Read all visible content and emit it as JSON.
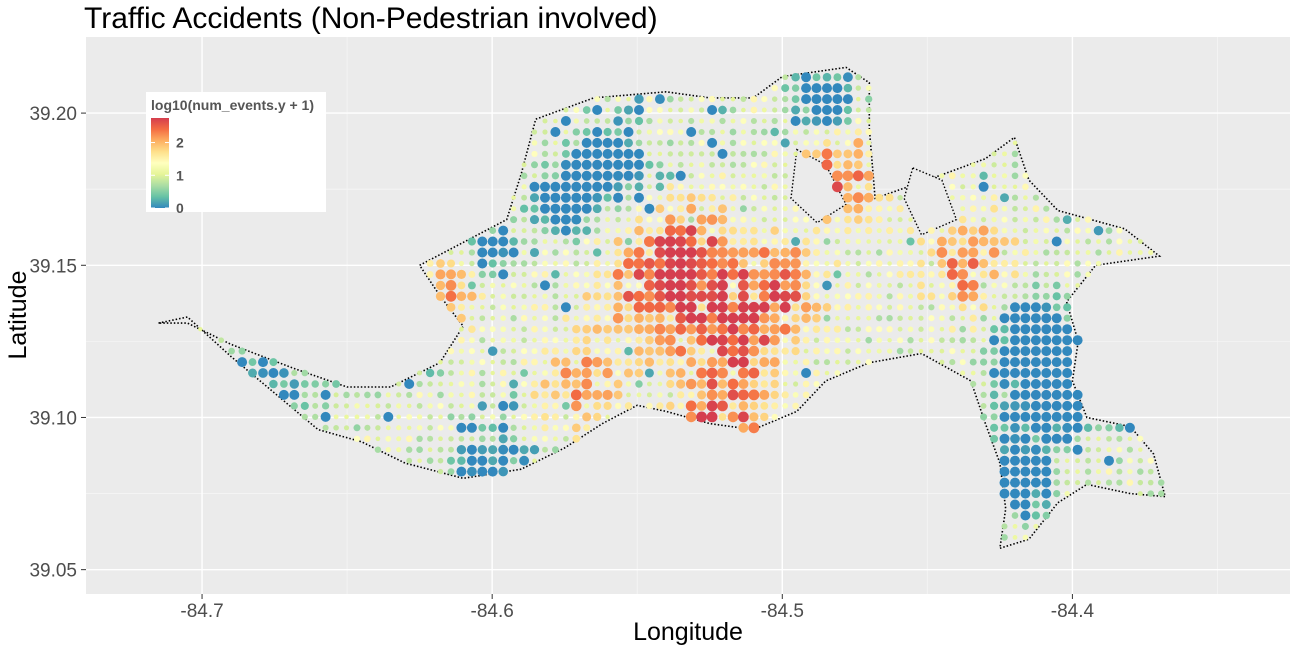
{
  "chart_data": {
    "type": "heatmap",
    "title": "Traffic Accidents (Non-Pedestrian involved)",
    "xlabel": "Longitude",
    "ylabel": "Latitude",
    "xlim": [
      -84.74,
      -84.325
    ],
    "ylim": [
      39.042,
      39.225
    ],
    "x_ticks": [
      -84.7,
      -84.6,
      -84.5,
      -84.4
    ],
    "x_tick_labels": [
      "-84.7",
      "-84.6",
      "-84.5",
      "-84.4"
    ],
    "y_ticks": [
      39.05,
      39.1,
      39.15,
      39.2
    ],
    "y_tick_labels": [
      "39.05",
      "39.10",
      "39.15",
      "39.20"
    ],
    "grid": true,
    "legend": {
      "title": "log10(num_events.y + 1)",
      "placement": "top-left inside",
      "ticks": [
        0,
        1,
        2
      ],
      "tick_labels": [
        "0",
        "1",
        "2"
      ],
      "range": [
        0,
        2.75
      ],
      "colors": [
        "#3288bd",
        "#66c2a5",
        "#abdda4",
        "#e6f598",
        "#ffffbf",
        "#fee08b",
        "#fdae61",
        "#f46d43",
        "#d53e4f"
      ]
    },
    "grid_spacing_deg": 0.0036,
    "region_polygon": [
      [
        -84.715,
        39.131
      ],
      [
        -84.705,
        39.133
      ],
      [
        -84.69,
        39.12
      ],
      [
        -84.675,
        39.108
      ],
      [
        -84.66,
        39.096
      ],
      [
        -84.645,
        39.092
      ],
      [
        -84.63,
        39.085
      ],
      [
        -84.61,
        39.08
      ],
      [
        -84.59,
        39.083
      ],
      [
        -84.575,
        39.09
      ],
      [
        -84.562,
        39.098
      ],
      [
        -84.55,
        39.104
      ],
      [
        -84.54,
        39.102
      ],
      [
        -84.525,
        39.098
      ],
      [
        -84.51,
        39.096
      ],
      [
        -84.495,
        39.102
      ],
      [
        -84.485,
        39.112
      ],
      [
        -84.47,
        39.118
      ],
      [
        -84.452,
        39.121
      ],
      [
        -84.435,
        39.112
      ],
      [
        -84.43,
        39.098
      ],
      [
        -84.425,
        39.085
      ],
      [
        -84.423,
        39.07
      ],
      [
        -84.425,
        39.057
      ],
      [
        -84.415,
        39.06
      ],
      [
        -84.405,
        39.072
      ],
      [
        -84.395,
        39.078
      ],
      [
        -84.38,
        39.075
      ],
      [
        -84.368,
        39.074
      ],
      [
        -84.372,
        39.088
      ],
      [
        -84.38,
        39.097
      ],
      [
        -84.395,
        39.1
      ],
      [
        -84.4,
        39.112
      ],
      [
        -84.398,
        39.125
      ],
      [
        -84.402,
        39.138
      ],
      [
        -84.392,
        39.15
      ],
      [
        -84.37,
        39.153
      ],
      [
        -84.382,
        39.162
      ],
      [
        -84.405,
        39.168
      ],
      [
        -84.415,
        39.178
      ],
      [
        -84.42,
        39.192
      ],
      [
        -84.43,
        39.185
      ],
      [
        -84.45,
        39.178
      ],
      [
        -84.468,
        39.172
      ],
      [
        -84.47,
        39.195
      ],
      [
        -84.47,
        39.21
      ],
      [
        -84.478,
        39.215
      ],
      [
        -84.5,
        39.212
      ],
      [
        -84.51,
        39.205
      ],
      [
        -84.525,
        39.205
      ],
      [
        -84.54,
        39.207
      ],
      [
        -84.565,
        39.205
      ],
      [
        -84.585,
        39.198
      ],
      [
        -84.59,
        39.18
      ],
      [
        -84.595,
        39.165
      ],
      [
        -84.605,
        39.16
      ],
      [
        -84.625,
        39.15
      ],
      [
        -84.618,
        39.14
      ],
      [
        -84.61,
        39.13
      ],
      [
        -84.618,
        39.118
      ],
      [
        -84.635,
        39.11
      ],
      [
        -84.65,
        39.11
      ],
      [
        -84.668,
        39.116
      ],
      [
        -84.69,
        39.124
      ],
      [
        -84.705,
        39.131
      ]
    ],
    "excluded_regions": [
      [
        [
          -84.495,
          39.188
        ],
        [
          -84.485,
          39.183
        ],
        [
          -84.478,
          39.17
        ],
        [
          -84.488,
          39.164
        ],
        [
          -84.497,
          39.172
        ]
      ],
      [
        [
          -84.455,
          39.182
        ],
        [
          -84.445,
          39.178
        ],
        [
          -84.44,
          39.165
        ],
        [
          -84.452,
          39.16
        ],
        [
          -84.458,
          39.172
        ]
      ]
    ],
    "hotspots": [
      {
        "lon": -84.522,
        "lat": 39.098,
        "weight": 2.8,
        "spread": 0.016
      },
      {
        "lon": -84.515,
        "lat": 39.128,
        "weight": 2.5,
        "spread": 0.018
      },
      {
        "lon": -84.545,
        "lat": 39.14,
        "weight": 2.4,
        "spread": 0.02
      },
      {
        "lon": -84.53,
        "lat": 39.155,
        "weight": 2.3,
        "spread": 0.015
      },
      {
        "lon": -84.48,
        "lat": 39.18,
        "weight": 2.4,
        "spread": 0.014
      },
      {
        "lon": -84.618,
        "lat": 39.14,
        "weight": 2.2,
        "spread": 0.012
      },
      {
        "lon": -84.435,
        "lat": 39.15,
        "weight": 2.2,
        "spread": 0.016
      },
      {
        "lon": -84.57,
        "lat": 39.11,
        "weight": 2.0,
        "spread": 0.014
      },
      {
        "lon": -84.5,
        "lat": 39.145,
        "weight": 2.0,
        "spread": 0.015
      }
    ],
    "coldspots": [
      {
        "lon": -84.405,
        "lat": 39.11,
        "depth": 2.4,
        "spread": 0.016
      },
      {
        "lon": -84.42,
        "lat": 39.08,
        "depth": 2.0,
        "spread": 0.012
      },
      {
        "lon": -84.575,
        "lat": 39.17,
        "depth": 1.9,
        "spread": 0.01
      },
      {
        "lon": -84.56,
        "lat": 39.185,
        "depth": 1.9,
        "spread": 0.012
      },
      {
        "lon": -84.485,
        "lat": 39.205,
        "depth": 1.8,
        "spread": 0.01
      },
      {
        "lon": -84.6,
        "lat": 39.155,
        "depth": 1.6,
        "spread": 0.008
      },
      {
        "lon": -84.415,
        "lat": 39.13,
        "depth": 1.8,
        "spread": 0.012
      },
      {
        "lon": -84.68,
        "lat": 39.108,
        "depth": 1.2,
        "spread": 0.02
      },
      {
        "lon": -84.6,
        "lat": 39.078,
        "depth": 1.6,
        "spread": 0.015
      }
    ]
  }
}
